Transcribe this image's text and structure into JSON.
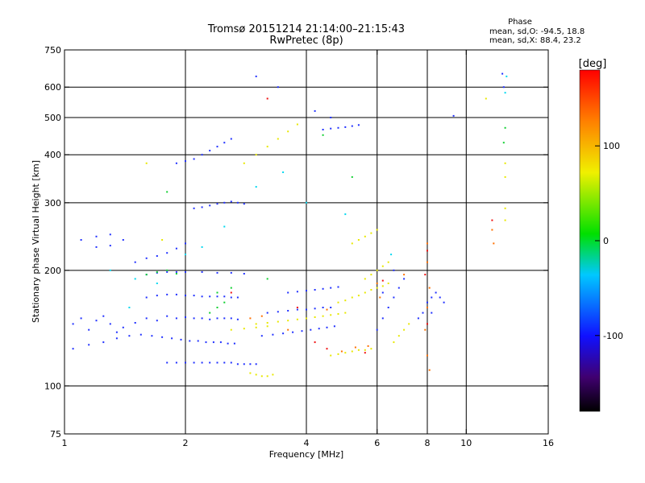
{
  "chart_data": {
    "type": "scatter",
    "title": "Tromsø 20151214 21:14:00–21:15:43",
    "subtitle": "RwPretec (8p)",
    "xlabel": "Frequency [MHz]",
    "ylabel": "Stationary phase Virtual Height [km]",
    "x_scale": "log",
    "y_scale": "log",
    "xlim": [
      1,
      16
    ],
    "ylim": [
      75,
      750
    ],
    "x_ticks": [
      1,
      2,
      4,
      6,
      8,
      10,
      16
    ],
    "y_ticks": [
      75,
      100,
      200,
      300,
      400,
      500,
      600,
      750
    ],
    "x_grid": [
      2,
      4,
      6,
      8,
      10
    ],
    "y_grid": [
      100,
      200,
      300,
      400,
      500,
      600
    ],
    "grid": true,
    "stats": {
      "title": "Phase",
      "line1": "mean, sd,O: -94.5, 18.8",
      "line2": "mean, sd,X:  88.4, 23.2"
    },
    "colorbar": {
      "label": "[deg]",
      "range": [
        -180,
        180
      ],
      "ticks": [
        100,
        0,
        -100
      ],
      "colormap": "rainbow"
    },
    "series": [
      {
        "points": [
          [
            1.05,
            145
          ],
          [
            1.1,
            150
          ],
          [
            1.15,
            140
          ],
          [
            1.2,
            148
          ],
          [
            1.25,
            152
          ],
          [
            1.3,
            145
          ],
          [
            1.35,
            138
          ],
          [
            1.4,
            142
          ],
          [
            1.5,
            146
          ],
          [
            1.6,
            150
          ],
          [
            1.7,
            148
          ],
          [
            1.8,
            152
          ],
          [
            1.9,
            150
          ],
          [
            2.0,
            151
          ],
          [
            2.1,
            150
          ],
          [
            2.2,
            150
          ],
          [
            2.3,
            149
          ],
          [
            2.4,
            150
          ],
          [
            2.5,
            150
          ],
          [
            2.6,
            150
          ],
          [
            2.7,
            149
          ],
          [
            1.05,
            125
          ],
          [
            1.15,
            128
          ],
          [
            1.25,
            130
          ],
          [
            1.35,
            133
          ],
          [
            1.45,
            135
          ],
          [
            1.55,
            136
          ],
          [
            1.65,
            135
          ],
          [
            1.75,
            134
          ],
          [
            1.85,
            133
          ],
          [
            1.95,
            132
          ],
          [
            2.05,
            131
          ],
          [
            2.15,
            131
          ],
          [
            2.25,
            130
          ],
          [
            2.35,
            130
          ],
          [
            2.45,
            130
          ],
          [
            2.55,
            129
          ],
          [
            2.65,
            129
          ],
          [
            1.8,
            115
          ],
          [
            1.9,
            115
          ],
          [
            2.0,
            115
          ],
          [
            2.1,
            115
          ],
          [
            2.2,
            115
          ],
          [
            2.3,
            115
          ],
          [
            2.4,
            115
          ],
          [
            2.5,
            115
          ],
          [
            2.6,
            115
          ],
          [
            2.7,
            114
          ],
          [
            2.8,
            114
          ],
          [
            2.9,
            114
          ],
          [
            3.0,
            114
          ],
          [
            1.6,
            170
          ],
          [
            1.7,
            172
          ],
          [
            1.8,
            173
          ],
          [
            1.9,
            173
          ],
          [
            2.0,
            172
          ],
          [
            2.1,
            172
          ],
          [
            2.2,
            171
          ],
          [
            2.3,
            171
          ],
          [
            2.4,
            171
          ],
          [
            2.5,
            171
          ],
          [
            2.6,
            170
          ],
          [
            2.7,
            170
          ],
          [
            1.6,
            195
          ],
          [
            1.7,
            197
          ],
          [
            1.8,
            198
          ],
          [
            1.9,
            198
          ],
          [
            2.0,
            198
          ],
          [
            2.2,
            198
          ],
          [
            2.4,
            197
          ],
          [
            2.6,
            197
          ],
          [
            2.8,
            196
          ],
          [
            1.1,
            240
          ],
          [
            1.2,
            245
          ],
          [
            1.3,
            248
          ],
          [
            1.4,
            240
          ],
          [
            1.2,
            230
          ],
          [
            1.3,
            232
          ],
          [
            1.5,
            210
          ],
          [
            1.6,
            215
          ],
          [
            1.7,
            218
          ],
          [
            1.8,
            222
          ],
          [
            1.9,
            228
          ],
          [
            2.0,
            235
          ],
          [
            2.1,
            290
          ],
          [
            2.2,
            292
          ],
          [
            2.3,
            295
          ],
          [
            2.4,
            298
          ],
          [
            2.5,
            300
          ],
          [
            2.6,
            302
          ],
          [
            2.7,
            300
          ],
          [
            2.8,
            298
          ],
          [
            1.9,
            380
          ],
          [
            2.0,
            385
          ],
          [
            2.1,
            390
          ],
          [
            2.2,
            400
          ],
          [
            2.3,
            410
          ],
          [
            2.4,
            420
          ],
          [
            2.5,
            430
          ],
          [
            2.6,
            440
          ],
          [
            3.2,
            155
          ],
          [
            3.4,
            156
          ],
          [
            3.6,
            157
          ],
          [
            3.8,
            158
          ],
          [
            4.0,
            158
          ],
          [
            4.2,
            159
          ],
          [
            4.4,
            160
          ],
          [
            4.6,
            160
          ],
          [
            3.1,
            135
          ],
          [
            3.3,
            136
          ],
          [
            3.5,
            137
          ],
          [
            3.7,
            138
          ],
          [
            3.9,
            139
          ],
          [
            4.1,
            140
          ],
          [
            4.3,
            141
          ],
          [
            4.5,
            142
          ],
          [
            4.7,
            143
          ],
          [
            3.6,
            175
          ],
          [
            3.8,
            176
          ],
          [
            4.0,
            177
          ],
          [
            4.2,
            178
          ],
          [
            4.4,
            179
          ],
          [
            4.6,
            180
          ],
          [
            4.8,
            181
          ],
          [
            4.4,
            465
          ],
          [
            4.6,
            468
          ],
          [
            4.8,
            470
          ],
          [
            5.0,
            472
          ],
          [
            5.2,
            475
          ],
          [
            5.4,
            478
          ],
          [
            6.0,
            140
          ],
          [
            6.2,
            150
          ],
          [
            6.4,
            160
          ],
          [
            6.6,
            170
          ],
          [
            6.8,
            180
          ],
          [
            7.0,
            190
          ],
          [
            6.2,
            175
          ],
          [
            6.6,
            200
          ],
          [
            7.6,
            150
          ],
          [
            7.8,
            155
          ],
          [
            8.0,
            165
          ],
          [
            8.2,
            170
          ],
          [
            8.4,
            175
          ],
          [
            8.6,
            170
          ],
          [
            8.8,
            165
          ],
          [
            8.2,
            155
          ],
          [
            9.3,
            505
          ],
          [
            12.3,
            650
          ],
          [
            12.4,
            600
          ],
          [
            4.6,
            500
          ],
          [
            4.2,
            520
          ],
          [
            3.4,
            600
          ],
          [
            3.0,
            640
          ]
        ],
        "color": "#2030ff"
      },
      {
        "points": [
          [
            3.0,
            145
          ],
          [
            3.2,
            146
          ],
          [
            3.4,
            147
          ],
          [
            3.6,
            148
          ],
          [
            3.8,
            149
          ],
          [
            4.0,
            150
          ],
          [
            4.2,
            151
          ],
          [
            4.4,
            152
          ],
          [
            4.6,
            153
          ],
          [
            4.8,
            154
          ],
          [
            5.0,
            155
          ],
          [
            2.6,
            140
          ],
          [
            2.8,
            141
          ],
          [
            3.0,
            142
          ],
          [
            3.2,
            143
          ],
          [
            4.6,
            120
          ],
          [
            4.8,
            121
          ],
          [
            5.0,
            122
          ],
          [
            5.2,
            123
          ],
          [
            5.4,
            124
          ],
          [
            5.6,
            124
          ],
          [
            5.8,
            125
          ],
          [
            4.8,
            165
          ],
          [
            5.0,
            167
          ],
          [
            5.2,
            170
          ],
          [
            5.4,
            172
          ],
          [
            5.6,
            175
          ],
          [
            5.8,
            178
          ],
          [
            6.0,
            180
          ],
          [
            6.2,
            182
          ],
          [
            6.4,
            185
          ],
          [
            5.6,
            190
          ],
          [
            5.8,
            195
          ],
          [
            6.0,
            200
          ],
          [
            6.2,
            205
          ],
          [
            6.4,
            210
          ],
          [
            2.9,
            108
          ],
          [
            3.0,
            107
          ],
          [
            3.1,
            106
          ],
          [
            3.2,
            106
          ],
          [
            3.3,
            107
          ],
          [
            6.6,
            130
          ],
          [
            6.8,
            135
          ],
          [
            7.0,
            140
          ],
          [
            7.2,
            145
          ],
          [
            2.8,
            380
          ],
          [
            3.0,
            400
          ],
          [
            3.2,
            420
          ],
          [
            3.4,
            440
          ],
          [
            3.6,
            460
          ],
          [
            3.8,
            480
          ],
          [
            5.2,
            235
          ],
          [
            5.4,
            240
          ],
          [
            5.6,
            245
          ],
          [
            5.8,
            250
          ],
          [
            6.0,
            255
          ],
          [
            12.5,
            380
          ],
          [
            12.5,
            350
          ],
          [
            12.5,
            290
          ],
          [
            12.5,
            270
          ],
          [
            11.2,
            560
          ],
          [
            1.75,
            240
          ],
          [
            1.6,
            380
          ]
        ],
        "color": "#e8e800"
      },
      {
        "points": [
          [
            1.6,
            195
          ],
          [
            1.7,
            198
          ],
          [
            1.8,
            200
          ],
          [
            1.9,
            196
          ],
          [
            2.4,
            175
          ],
          [
            2.6,
            180
          ],
          [
            3.2,
            190
          ],
          [
            2.3,
            155
          ],
          [
            2.4,
            160
          ],
          [
            2.5,
            165
          ],
          [
            4.4,
            450
          ],
          [
            5.2,
            350
          ],
          [
            12.5,
            470
          ],
          [
            12.4,
            430
          ],
          [
            1.8,
            320
          ]
        ],
        "color": "#10d030"
      },
      {
        "points": [
          [
            1.3,
            200
          ],
          [
            1.5,
            190
          ],
          [
            1.7,
            185
          ],
          [
            2.2,
            230
          ],
          [
            2.5,
            260
          ],
          [
            3.0,
            330
          ],
          [
            3.5,
            360
          ],
          [
            4.0,
            300
          ],
          [
            5.0,
            280
          ],
          [
            6.5,
            220
          ],
          [
            12.6,
            640
          ],
          [
            12.5,
            580
          ],
          [
            1.45,
            160
          ],
          [
            2.0,
            220
          ]
        ],
        "color": "#00d8f0"
      },
      {
        "points": [
          [
            2.9,
            150
          ],
          [
            3.1,
            152
          ],
          [
            4.9,
            123
          ],
          [
            5.3,
            126
          ],
          [
            5.7,
            127
          ],
          [
            6.0,
            185
          ],
          [
            4.5,
            158
          ],
          [
            3.6,
            140
          ],
          [
            7.0,
            195
          ],
          [
            8.0,
            235
          ],
          [
            8.0,
            210
          ],
          [
            8.1,
            180
          ],
          [
            8.0,
            160
          ],
          [
            7.9,
            140
          ],
          [
            8.0,
            120
          ],
          [
            8.1,
            110
          ],
          [
            11.6,
            255
          ],
          [
            11.7,
            235
          ],
          [
            6.1,
            170
          ]
        ],
        "color": "#ff7000"
      },
      {
        "points": [
          [
            3.8,
            160
          ],
          [
            4.2,
            130
          ],
          [
            4.5,
            125
          ],
          [
            5.6,
            122
          ],
          [
            6.2,
            188
          ],
          [
            2.6,
            175
          ],
          [
            8.0,
            225
          ],
          [
            7.9,
            195
          ],
          [
            8.0,
            145
          ],
          [
            11.6,
            270
          ],
          [
            3.2,
            560
          ]
        ],
        "color": "#f01010"
      }
    ]
  }
}
